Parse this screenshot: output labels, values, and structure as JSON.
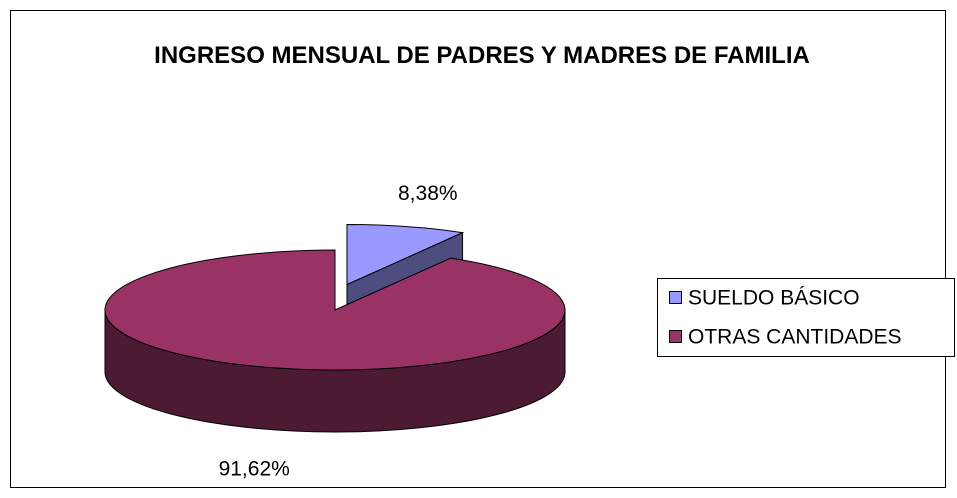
{
  "chart_data": {
    "type": "pie",
    "title": "INGRESO MENSUAL DE PADRES Y MADRES DE FAMILIA",
    "categories": [
      "SUELDO BÁSICO",
      "OTRAS CANTIDADES"
    ],
    "values": [
      8.38,
      91.62
    ],
    "value_labels": [
      "8,38%",
      "91,62%"
    ],
    "colors": [
      "#9999ff",
      "#993366"
    ],
    "explode": [
      true,
      false
    ],
    "legend": "right",
    "3d": true
  }
}
